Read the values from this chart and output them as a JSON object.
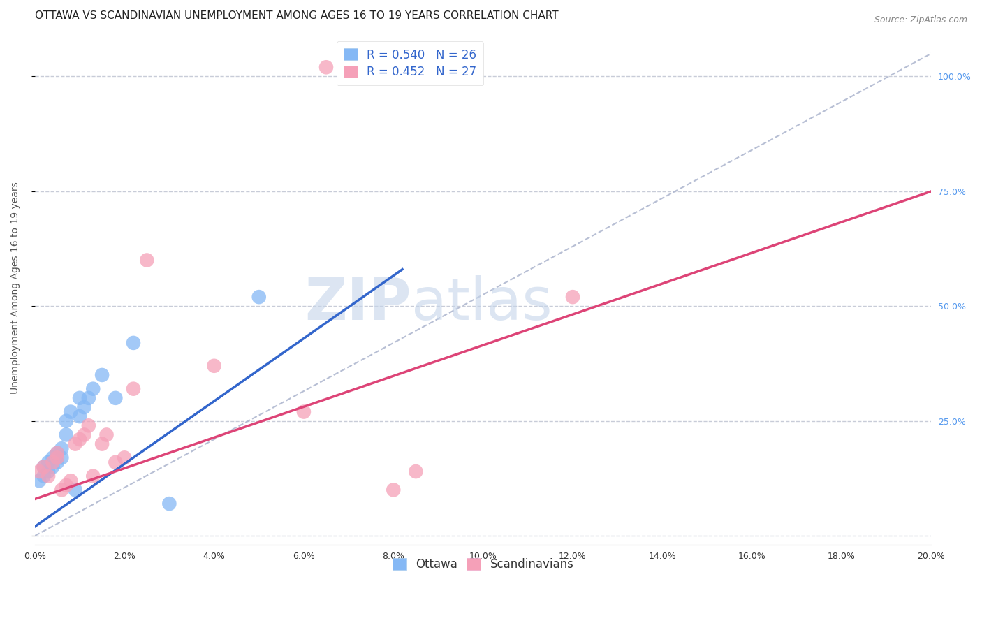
{
  "title": "OTTAWA VS SCANDINAVIAN UNEMPLOYMENT AMONG AGES 16 TO 19 YEARS CORRELATION CHART",
  "source": "Source: ZipAtlas.com",
  "ylabel_left": "Unemployment Among Ages 16 to 19 years",
  "x_tick_labels": [
    "0.0%",
    "2.0%",
    "4.0%",
    "6.0%",
    "8.0%",
    "10.0%",
    "12.0%",
    "14.0%",
    "16.0%",
    "18.0%",
    "20.0%"
  ],
  "y_tick_labels_right": [
    "25.0%",
    "50.0%",
    "75.0%",
    "100.0%"
  ],
  "xlim": [
    0.0,
    0.2
  ],
  "ylim": [
    -0.02,
    1.1
  ],
  "ottawa_color": "#85b8f5",
  "scandinavian_color": "#f5a0b8",
  "ottawa_line_color": "#3366cc",
  "scandinavian_line_color": "#dd4477",
  "ref_line_color": "#b0b8d0",
  "background_color": "#ffffff",
  "grid_color": "#c8ccd8",
  "ottawa_line_x0": 0.0,
  "ottawa_line_y0": 0.02,
  "ottawa_line_x1": 0.082,
  "ottawa_line_y1": 0.58,
  "scand_line_x0": 0.0,
  "scand_line_y0": 0.08,
  "scand_line_x1": 0.2,
  "scand_line_y1": 0.75,
  "ref_line_x0": 0.0,
  "ref_line_y0": 0.0,
  "ref_line_x1": 0.2,
  "ref_line_y1": 1.05,
  "ottawa_x": [
    0.001,
    0.002,
    0.002,
    0.003,
    0.003,
    0.004,
    0.004,
    0.005,
    0.005,
    0.006,
    0.006,
    0.007,
    0.007,
    0.008,
    0.009,
    0.01,
    0.01,
    0.011,
    0.012,
    0.013,
    0.015,
    0.018,
    0.022,
    0.03,
    0.05,
    0.08
  ],
  "ottawa_y": [
    0.12,
    0.13,
    0.15,
    0.14,
    0.16,
    0.15,
    0.17,
    0.16,
    0.18,
    0.17,
    0.19,
    0.22,
    0.25,
    0.27,
    0.1,
    0.26,
    0.3,
    0.28,
    0.3,
    0.32,
    0.35,
    0.3,
    0.42,
    0.07,
    0.52,
    1.0
  ],
  "scandinavian_x": [
    0.001,
    0.002,
    0.003,
    0.004,
    0.005,
    0.005,
    0.006,
    0.007,
    0.008,
    0.009,
    0.01,
    0.011,
    0.012,
    0.013,
    0.015,
    0.016,
    0.018,
    0.02,
    0.022,
    0.025,
    0.04,
    0.06,
    0.065,
    0.08,
    0.085,
    0.09,
    0.12
  ],
  "scandinavian_y": [
    0.14,
    0.15,
    0.13,
    0.16,
    0.17,
    0.18,
    0.1,
    0.11,
    0.12,
    0.2,
    0.21,
    0.22,
    0.24,
    0.13,
    0.2,
    0.22,
    0.16,
    0.17,
    0.32,
    0.6,
    0.37,
    0.27,
    1.02,
    0.1,
    0.14,
    1.0,
    0.52
  ],
  "title_fontsize": 11,
  "source_fontsize": 9,
  "axis_label_fontsize": 10,
  "tick_fontsize": 9,
  "legend_fontsize": 12
}
